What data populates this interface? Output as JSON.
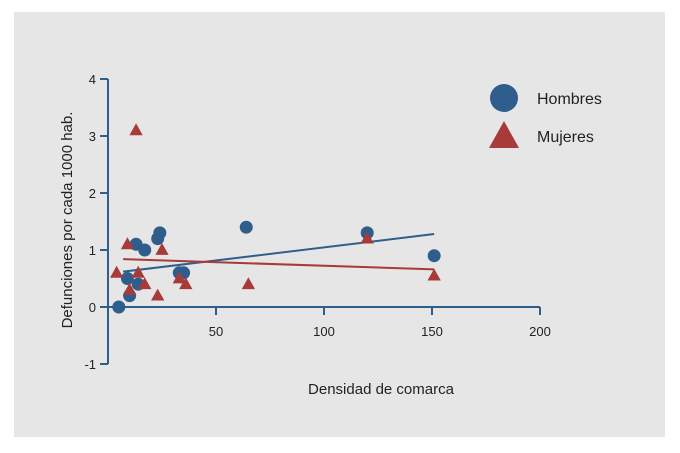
{
  "colors": {
    "background": "#e6e6e6",
    "hombres": "#2f5e8c",
    "mujeres": "#a83a3a",
    "axis": "#2f5e8c",
    "text": "#222222"
  },
  "chart_data": {
    "type": "scatter",
    "title": "",
    "xlabel": "Densidad de comarca",
    "ylabel": "Defunciones por cada 1000 hab.",
    "xlim": [
      0,
      200
    ],
    "ylim": [
      -1,
      4
    ],
    "x_ticks": [
      50,
      100,
      150,
      200
    ],
    "y_ticks": [
      -1,
      0,
      1,
      2,
      3,
      4
    ],
    "grid": false,
    "legend": "top-right",
    "series": [
      {
        "name": "Hombres",
        "marker": "circle",
        "color": "#2f5e8c",
        "points": [
          {
            "x": 5,
            "y": 0.0
          },
          {
            "x": 9,
            "y": 0.5
          },
          {
            "x": 10,
            "y": 0.2
          },
          {
            "x": 13,
            "y": 1.1
          },
          {
            "x": 14,
            "y": 0.4
          },
          {
            "x": 17,
            "y": 1.0
          },
          {
            "x": 23,
            "y": 1.2
          },
          {
            "x": 24,
            "y": 1.3
          },
          {
            "x": 33,
            "y": 0.6
          },
          {
            "x": 35,
            "y": 0.6
          },
          {
            "x": 64,
            "y": 1.4
          },
          {
            "x": 120,
            "y": 1.3
          },
          {
            "x": 151,
            "y": 0.9
          }
        ],
        "trendline": {
          "x": [
            7,
            151
          ],
          "y": [
            0.62,
            1.28
          ]
        }
      },
      {
        "name": "Mujeres",
        "marker": "triangle",
        "color": "#a83a3a",
        "points": [
          {
            "x": 4,
            "y": 0.6
          },
          {
            "x": 9,
            "y": 1.1
          },
          {
            "x": 10,
            "y": 0.3
          },
          {
            "x": 13,
            "y": 3.1
          },
          {
            "x": 14,
            "y": 0.6
          },
          {
            "x": 17,
            "y": 0.4
          },
          {
            "x": 23,
            "y": 0.2
          },
          {
            "x": 25,
            "y": 1.0
          },
          {
            "x": 33,
            "y": 0.5
          },
          {
            "x": 36,
            "y": 0.4
          },
          {
            "x": 65,
            "y": 0.4
          },
          {
            "x": 120,
            "y": 1.2
          },
          {
            "x": 151,
            "y": 0.55
          }
        ],
        "trendline": {
          "x": [
            7,
            151
          ],
          "y": [
            0.84,
            0.66
          ]
        }
      }
    ]
  }
}
